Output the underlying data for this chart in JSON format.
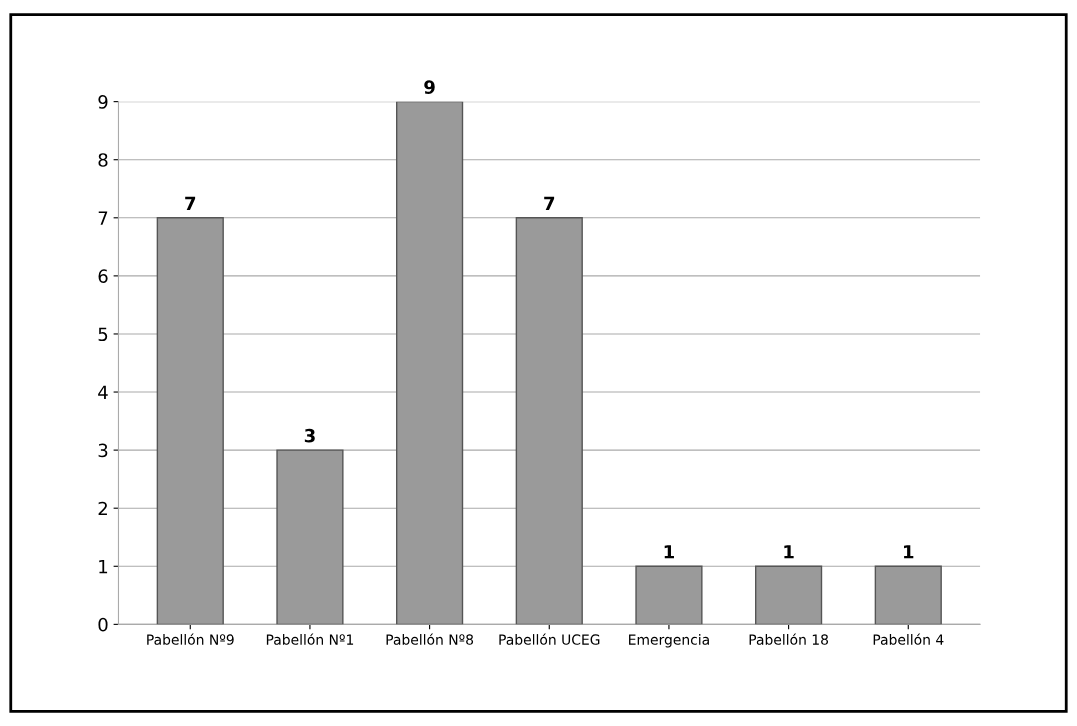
{
  "chart_data": {
    "type": "bar",
    "categories": [
      "Pabellón Nº9",
      "Pabellón Nº1",
      "Pabellón Nº8",
      "Pabellón UCEG",
      "Emergencia",
      "Pabellón 18",
      "Pabellón 4"
    ],
    "values": [
      7,
      3,
      9,
      7,
      1,
      1,
      1
    ],
    "color": "#9a9a9a",
    "ylim": [
      0,
      9
    ],
    "yticks": [
      0,
      1,
      2,
      3,
      4,
      5,
      6,
      7,
      8,
      9
    ],
    "grid": "y",
    "data_labels": true
  }
}
